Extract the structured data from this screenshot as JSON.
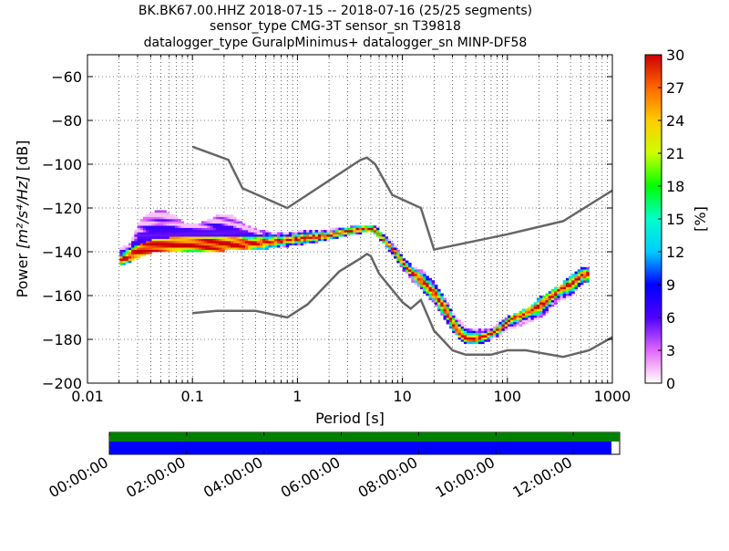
{
  "chart_data": {
    "type": "heatmap",
    "title_lines": [
      "BK.BK67.00.HHZ   2018-07-15 -- 2018-07-16  (25/25 segments)",
      "sensor_type CMG-3T sensor_sn T39818",
      "datalogger_type GuralpMinimus+ datalogger_sn MINP-DF58"
    ],
    "xlabel": "Period [s]",
    "ylabel_prefix": "Power ",
    "ylabel_units": "[m²/s⁴/Hz]",
    "ylabel_suffix": " [dB]",
    "x_scale": "log",
    "xlim": [
      0.01,
      1000
    ],
    "ylim": [
      -200,
      -50
    ],
    "x_ticks": [
      0.01,
      0.1,
      1,
      10,
      100,
      1000
    ],
    "x_tick_labels": [
      "0.01",
      "0.1",
      "1",
      "10",
      "100",
      "1000"
    ],
    "y_ticks": [
      -200,
      -180,
      -160,
      -140,
      -120,
      -100,
      -80,
      -60
    ],
    "y_tick_labels": [
      "−200",
      "−180",
      "−160",
      "−140",
      "−120",
      "−100",
      "−80",
      "−60"
    ],
    "grid": true,
    "colorbar": {
      "label": "[%]",
      "min": 0,
      "max": 30,
      "ticks": [
        0,
        3,
        6,
        9,
        12,
        15,
        18,
        21,
        24,
        27,
        30
      ],
      "tick_labels": [
        "0",
        "3",
        "6",
        "9",
        "12",
        "15",
        "18",
        "21",
        "24",
        "27",
        "30"
      ],
      "colormap": "pqlx"
    },
    "reference_models": [
      {
        "points": [
          [
            0.1,
            -92
          ],
          [
            0.22,
            -98
          ],
          [
            0.3,
            -111
          ],
          [
            0.8,
            -120
          ],
          [
            4.0,
            -98
          ],
          [
            4.6,
            -97
          ],
          [
            5.5,
            -100
          ],
          [
            8.0,
            -114
          ],
          [
            15.0,
            -120
          ],
          [
            20.0,
            -139
          ],
          [
            100.0,
            -132
          ],
          [
            340.0,
            -126
          ],
          [
            1000.0,
            -112
          ]
        ]
      },
      {
        "points": [
          [
            0.1,
            -168
          ],
          [
            0.17,
            -167
          ],
          [
            0.4,
            -167
          ],
          [
            0.8,
            -170
          ],
          [
            1.25,
            -164
          ],
          [
            2.5,
            -149
          ],
          [
            4.0,
            -143
          ],
          [
            4.6,
            -141
          ],
          [
            5.0,
            -142
          ],
          [
            6.0,
            -150
          ],
          [
            10.0,
            -163
          ],
          [
            12.0,
            -166
          ],
          [
            15.0,
            -162
          ],
          [
            20.0,
            -176
          ],
          [
            30.0,
            -185
          ],
          [
            40.0,
            -187
          ],
          [
            70.0,
            -187
          ],
          [
            100.0,
            -185
          ],
          [
            150.0,
            -185
          ],
          [
            340.0,
            -188
          ],
          [
            600.0,
            -185
          ],
          [
            1000.0,
            -179
          ]
        ]
      }
    ],
    "psd_mode": [
      [
        0.019,
        -145
      ],
      [
        0.025,
        -142
      ],
      [
        0.03,
        -140
      ],
      [
        0.04,
        -138
      ],
      [
        0.06,
        -137
      ],
      [
        0.1,
        -137
      ],
      [
        0.15,
        -137
      ],
      [
        0.2,
        -137
      ],
      [
        0.3,
        -137
      ],
      [
        0.5,
        -136
      ],
      [
        0.8,
        -135
      ],
      [
        1.2,
        -134
      ],
      [
        2.0,
        -133
      ],
      [
        3.0,
        -131
      ],
      [
        4.0,
        -130
      ],
      [
        5.0,
        -130
      ],
      [
        6.0,
        -133
      ],
      [
        7.0,
        -137
      ],
      [
        8.0,
        -140
      ],
      [
        10.0,
        -146
      ],
      [
        12.0,
        -150
      ],
      [
        15.0,
        -154
      ],
      [
        20.0,
        -160
      ],
      [
        25.0,
        -167
      ],
      [
        30.0,
        -174
      ],
      [
        35.0,
        -178
      ],
      [
        40.0,
        -180
      ],
      [
        50.0,
        -180
      ],
      [
        60.0,
        -179
      ],
      [
        80.0,
        -176
      ],
      [
        100.0,
        -172
      ],
      [
        150.0,
        -168
      ],
      [
        200.0,
        -165
      ],
      [
        300.0,
        -158
      ],
      [
        400.0,
        -155
      ],
      [
        500.0,
        -151
      ],
      [
        600.0,
        -151
      ]
    ],
    "psd_scatter_upper": [
      [
        0.02,
        -140
      ],
      [
        0.025,
        -137
      ],
      [
        0.03,
        -128
      ],
      [
        0.035,
        -125
      ],
      [
        0.045,
        -122
      ],
      [
        0.05,
        -122
      ],
      [
        0.06,
        -124
      ],
      [
        0.08,
        -128
      ],
      [
        0.1,
        -129
      ],
      [
        0.15,
        -126
      ],
      [
        0.18,
        -124
      ],
      [
        0.22,
        -124
      ],
      [
        0.25,
        -126
      ],
      [
        0.3,
        -129
      ],
      [
        0.4,
        -131
      ],
      [
        0.5,
        -132
      ],
      [
        0.7,
        -133
      ],
      [
        1.0,
        -132
      ],
      [
        1.5,
        -131
      ],
      [
        2.0,
        -131
      ],
      [
        3.0,
        -130
      ],
      [
        4.0,
        -129
      ],
      [
        5.0,
        -129
      ],
      [
        6.0,
        -132
      ],
      [
        7.0,
        -135
      ],
      [
        8.0,
        -138
      ],
      [
        10.0,
        -144
      ],
      [
        12.0,
        -148
      ],
      [
        15.0,
        -150
      ],
      [
        20.0,
        -156
      ],
      [
        25.0,
        -163
      ],
      [
        30.0,
        -170
      ],
      [
        40.0,
        -176
      ],
      [
        50.0,
        -177
      ],
      [
        70.0,
        -176
      ],
      [
        100.0,
        -171
      ],
      [
        150.0,
        -167
      ],
      [
        200.0,
        -162
      ],
      [
        300.0,
        -157
      ],
      [
        400.0,
        -152
      ],
      [
        500.0,
        -148
      ],
      [
        600.0,
        -148
      ]
    ],
    "psd_scatter_lower": [
      [
        0.02,
        -146
      ],
      [
        0.025,
        -144
      ],
      [
        0.03,
        -142
      ],
      [
        0.04,
        -140
      ],
      [
        0.06,
        -139
      ],
      [
        0.1,
        -140
      ],
      [
        0.15,
        -140
      ],
      [
        0.2,
        -139
      ],
      [
        0.3,
        -139
      ],
      [
        0.5,
        -138
      ],
      [
        0.8,
        -137
      ],
      [
        1.2,
        -136
      ],
      [
        2.0,
        -134
      ],
      [
        3.0,
        -132
      ],
      [
        4.0,
        -131
      ],
      [
        5.0,
        -131
      ],
      [
        6.0,
        -134
      ],
      [
        7.0,
        -138
      ],
      [
        8.0,
        -142
      ],
      [
        10.0,
        -148
      ],
      [
        12.0,
        -153
      ],
      [
        15.0,
        -157
      ],
      [
        20.0,
        -164
      ],
      [
        25.0,
        -171
      ],
      [
        30.0,
        -177
      ],
      [
        40.0,
        -182
      ],
      [
        50.0,
        -182
      ],
      [
        60.0,
        -181
      ],
      [
        80.0,
        -178
      ],
      [
        100.0,
        -175
      ],
      [
        150.0,
        -172
      ],
      [
        200.0,
        -170
      ],
      [
        300.0,
        -162
      ],
      [
        400.0,
        -160
      ],
      [
        500.0,
        -154
      ],
      [
        600.0,
        -154
      ]
    ]
  },
  "timeline": {
    "tick_labels": [
      "00:00:00",
      "02:00:00",
      "04:00:00",
      "06:00:00",
      "08:00:00",
      "10:00:00",
      "12:00:00"
    ],
    "tick_hours": [
      0,
      2,
      4,
      6,
      8,
      10,
      12
    ],
    "span_hours": 13.2,
    "coverage_fraction": 0.984,
    "colors": {
      "data_bar": "#008000",
      "segments_bar": "#0000ff"
    }
  },
  "colors": {
    "reference_model": "#666666",
    "grid": "#000000"
  }
}
